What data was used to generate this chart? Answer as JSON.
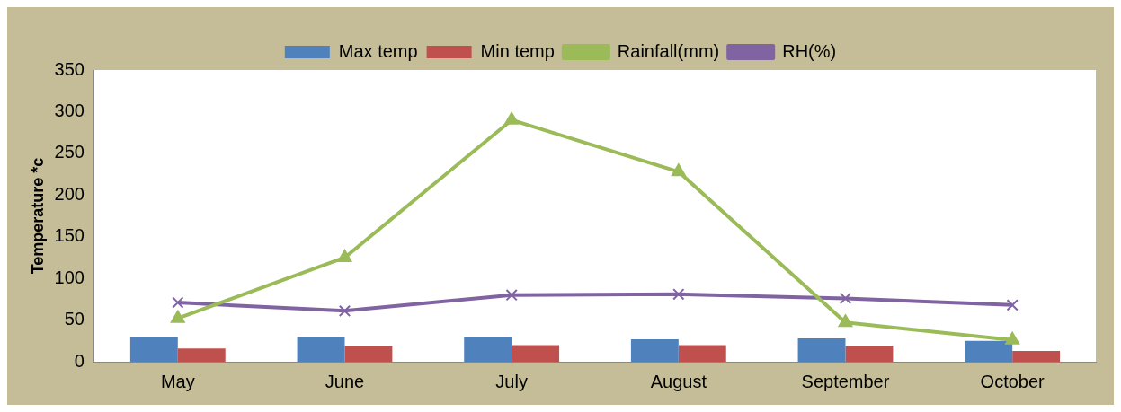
{
  "chart_data": {
    "type": "bar",
    "ylabel": "Temperature *c",
    "categories": [
      "May",
      "June",
      "July",
      "August",
      "September",
      "October"
    ],
    "series": [
      {
        "name": "Max temp",
        "color": "#4f81bd",
        "values": [
          29,
          30,
          29,
          27,
          28,
          25
        ]
      },
      {
        "name": "Min temp",
        "color": "#c0504d",
        "values": [
          16,
          19,
          20,
          20,
          19,
          13
        ]
      },
      {
        "name": "Rainfall(mm)",
        "type": "line",
        "color": "#9bbb59",
        "marker": "triangle",
        "values": [
          52,
          125,
          290,
          228,
          47,
          26
        ]
      },
      {
        "name": "RH(%)",
        "type": "line",
        "color": "#8064a2",
        "marker": "cross",
        "values": [
          71,
          61,
          80,
          81,
          76,
          68
        ]
      }
    ],
    "ylim": [
      0,
      350
    ],
    "yticks": [
      0,
      50,
      100,
      150,
      200,
      250,
      300,
      350
    ],
    "grid": false,
    "legend": "top"
  }
}
